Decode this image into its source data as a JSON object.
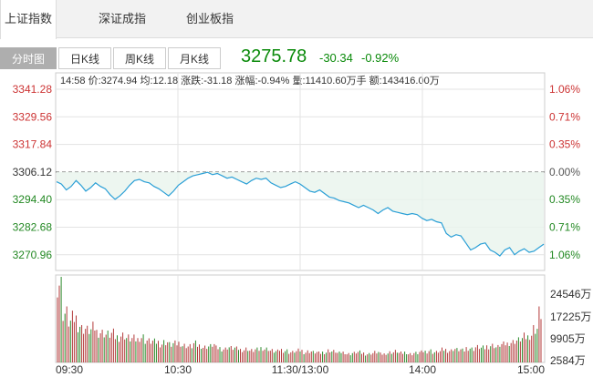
{
  "index_tabs": [
    {
      "label": "上证指数",
      "active": true
    },
    {
      "label": "深证成指",
      "active": false
    },
    {
      "label": "创业板指",
      "active": false
    }
  ],
  "period_tabs": [
    {
      "label": "分时图",
      "active": true
    },
    {
      "label": "日K线",
      "active": false
    },
    {
      "label": "周K线",
      "active": false
    },
    {
      "label": "月K线",
      "active": false
    }
  ],
  "quote": {
    "price": "3275.78",
    "change": "-30.34",
    "change_pct": "-0.92%",
    "color": "#0a8a0a"
  },
  "info_bar": {
    "time": "14:58",
    "price_label": "价:",
    "price": "3274.94",
    "avg_label": "均:",
    "avg": "12.18",
    "change_label": "涨跌:",
    "change": "-31.18",
    "pct_label": "涨幅:",
    "pct": "-0.94%",
    "vol_label": "量:",
    "vol": "11410.60万手",
    "amt_label": "额:",
    "amt": "143416.00万"
  },
  "chart_data": {
    "type": "line",
    "prev_close": 3306.12,
    "ylim": [
      3264.0,
      3348.0
    ],
    "y_ticks": [
      3341.28,
      3329.56,
      3317.84,
      3306.12,
      3294.4,
      3282.68,
      3270.96
    ],
    "pct_ticks": [
      "1.06%",
      "0.71%",
      "0.35%",
      "0.00%",
      "0.35%",
      "0.71%",
      "1.06%"
    ],
    "x_labels": [
      "09:30",
      "10:30",
      "11:30/13:00",
      "14:00",
      "15:00"
    ],
    "volume_ticks": [
      "24546万",
      "17225万",
      "9905万",
      "2584万"
    ],
    "colors": {
      "line": "#2a9fd6",
      "up": "#cc3333",
      "down": "#228822",
      "vol": "#b33a3a",
      "vol_green": "#2a8a2a"
    },
    "series": [
      {
        "values": [
          3302.0,
          3301.0,
          3298.5,
          3300.0,
          3302.5,
          3300.5,
          3298.0,
          3299.5,
          3301.5,
          3300.0,
          3299.0,
          3296.5,
          3294.5,
          3296.0,
          3298.0,
          3300.5,
          3302.5,
          3303.0,
          3302.0,
          3301.5,
          3300.0,
          3299.0,
          3297.5,
          3296.0,
          3298.0,
          3300.5,
          3302.0,
          3303.5,
          3304.5,
          3305.0,
          3305.5,
          3306.0,
          3305.0,
          3305.5,
          3304.5,
          3303.5,
          3304.0,
          3303.0,
          3302.0,
          3301.0,
          3302.5,
          3303.5,
          3303.0,
          3303.5,
          3301.5,
          3300.5,
          3299.5,
          3300.0,
          3301.0,
          3302.0,
          3301.0,
          3299.5,
          3298.0,
          3297.5,
          3298.5,
          3297.0,
          3295.5,
          3295.0,
          3294.0,
          3293.5,
          3293.0,
          3292.0,
          3291.0,
          3292.0,
          3291.0,
          3290.0,
          3288.5,
          3290.0,
          3291.0,
          3289.5,
          3289.0,
          3288.5,
          3288.0,
          3288.5,
          3288.0,
          3286.5,
          3285.5,
          3286.0,
          3285.0,
          3284.5,
          3280.0,
          3278.5,
          3279.5,
          3279.0,
          3276.0,
          3273.0,
          3274.0,
          3275.5,
          3276.0,
          3273.0,
          3272.0,
          3270.5,
          3273.0,
          3274.0,
          3271.0,
          3272.5,
          3273.5,
          3272.0,
          3272.5,
          3274.0,
          3275.5
        ]
      }
    ],
    "volume": [
      95,
      58,
      48,
      52,
      44,
      40,
      38,
      41,
      36,
      35,
      33,
      34,
      30,
      32,
      29,
      28,
      27,
      30,
      26,
      25,
      24,
      22,
      24,
      21,
      22,
      23,
      20,
      19,
      22,
      20,
      18,
      19,
      21,
      17,
      16,
      18,
      17,
      16,
      15,
      16,
      14,
      15,
      17,
      16,
      14,
      13,
      15,
      14,
      12,
      13,
      14,
      12,
      13,
      12,
      11,
      12,
      14,
      13,
      11,
      12,
      10,
      11,
      12,
      11,
      10,
      11,
      12,
      10,
      11,
      12,
      13,
      11,
      12,
      10,
      11,
      12,
      13,
      14,
      12,
      13,
      15,
      14,
      16,
      15,
      14,
      17,
      16,
      18,
      17,
      19,
      20,
      18,
      21,
      22,
      24,
      26,
      28,
      30,
      33,
      40,
      58
    ]
  }
}
